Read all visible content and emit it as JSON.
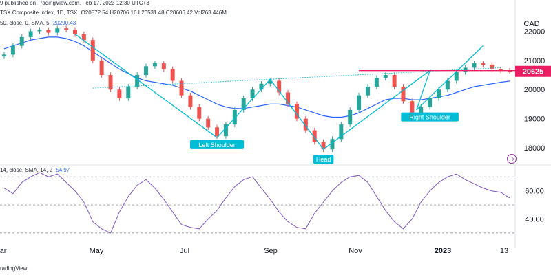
{
  "header": {
    "published": "9 published on TradingView.com, Feb 17, 2023 12:30 UTC+3",
    "symbol": "TSX Composite Index, 1D, TSX",
    "ohlc": "O20572.54  H20706.16  L20531.48  C20606.42  Vol263.446M",
    "ma_label": "50, close, 0, SMA, 5",
    "ma_value": "20290.43",
    "rsi_label": "14, close, SMA, 14, 2",
    "rsi_value": "54.97"
  },
  "footer": {
    "brand": "radingView"
  },
  "colors": {
    "up": "#26a69a",
    "down": "#ef5350",
    "ma": "#2962ff",
    "pattern": "#00bcd4",
    "neckline": "#e91e63",
    "rsi": "#7e57c2",
    "price_badge": "#e91e63"
  },
  "chart_data": [
    {
      "type": "candlestick",
      "currency": "CAD",
      "y_ticks": [
        18000,
        19000,
        20000,
        21000,
        22000
      ],
      "ylim": [
        17600,
        22600
      ],
      "x_ticks": [
        "Mar",
        "May",
        "Jul",
        "Sep",
        "Nov",
        "2023",
        "13"
      ],
      "last_price": "20625",
      "close_series": [
        21200,
        21500,
        21800,
        22000,
        22050,
        21950,
        22100,
        22050,
        21900,
        21700,
        21000,
        20500,
        20000,
        19700,
        20100,
        20500,
        20800,
        20900,
        20700,
        20300,
        19800,
        19400,
        19000,
        18700,
        18400,
        18800,
        19300,
        19700,
        20000,
        20200,
        20300,
        19900,
        19500,
        19000,
        18600,
        18200,
        17950,
        18300,
        18800,
        19300,
        19800,
        20100,
        20400,
        20500,
        20100,
        19600,
        19200,
        19400,
        19700,
        20000,
        20300,
        20600,
        20750,
        20900,
        20850,
        20700,
        20650,
        20625
      ],
      "ma_series": [
        21400,
        21500,
        21600,
        21700,
        21750,
        21800,
        21800,
        21750,
        21650,
        21500,
        21300,
        21100,
        20900,
        20700,
        20550,
        20400,
        20300,
        20250,
        20200,
        20150,
        20050,
        19950,
        19800,
        19650,
        19500,
        19400,
        19350,
        19350,
        19400,
        19450,
        19500,
        19500,
        19450,
        19400,
        19300,
        19200,
        19100,
        19050,
        19050,
        19100,
        19200,
        19350,
        19500,
        19650,
        19700,
        19700,
        19650,
        19650,
        19700,
        19750,
        19800,
        19900,
        20000,
        20100,
        20150,
        20200,
        20250,
        20290
      ],
      "annotations": [
        "Left Shoulder",
        "Head",
        "Right Shoulder"
      ],
      "neckline": 20650
    },
    {
      "type": "line",
      "name": "RSI",
      "y_ticks": [
        40.0,
        60.0
      ],
      "ylim": [
        27,
        76
      ],
      "levels": [
        30,
        50,
        70
      ],
      "values": [
        62,
        58,
        66,
        70,
        73,
        70,
        72,
        66,
        60,
        52,
        38,
        33,
        30,
        45,
        56,
        64,
        68,
        62,
        54,
        45,
        36,
        34,
        33,
        40,
        46,
        55,
        63,
        68,
        70,
        62,
        54,
        45,
        38,
        34,
        33,
        44,
        52,
        60,
        66,
        70,
        71,
        66,
        56,
        46,
        38,
        33,
        40,
        52,
        60,
        66,
        70,
        72,
        68,
        65,
        62,
        60,
        59,
        55
      ]
    }
  ]
}
